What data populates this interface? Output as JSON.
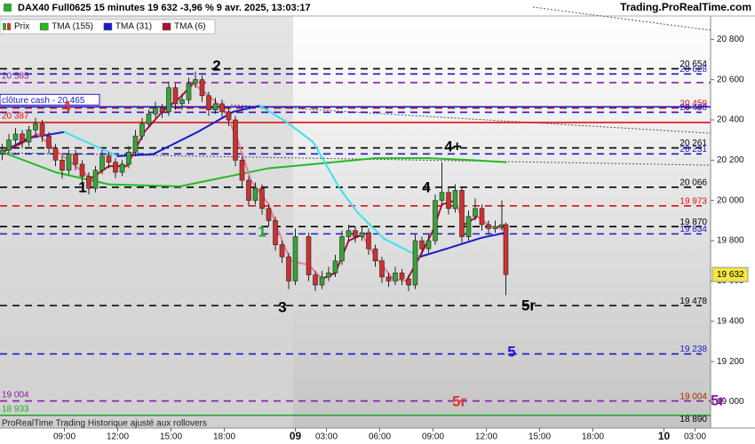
{
  "chart_data": {
    "type": "candlestick",
    "title": "DAX40 Full0625 15 minutes 19 632 -3,96 % 9 avr. 2025, 13:03:17",
    "source": "Trading.ProRealTime.com",
    "footer": "ProRealTime Trading  Historique ajusté aux rollovers",
    "xlim": [
      -0.5,
      159.5
    ],
    "ylim": [
      18870,
      20916
    ],
    "xticks": [
      {
        "value": 14,
        "label": "09:00"
      },
      {
        "value": 26,
        "label": "12:00"
      },
      {
        "value": 38,
        "label": "15:00"
      },
      {
        "value": 50,
        "label": "18:00"
      },
      {
        "value": 66,
        "label": "09"
      },
      {
        "value": 73,
        "label": "03:00"
      },
      {
        "value": 85,
        "label": "06:00"
      },
      {
        "value": 97,
        "label": "09:00"
      },
      {
        "value": 109,
        "label": "12:00"
      },
      {
        "value": 121,
        "label": "15:00"
      },
      {
        "value": 133,
        "label": "18:00"
      },
      {
        "value": 149,
        "label": "10"
      },
      {
        "value": 156,
        "label": "03:00"
      }
    ],
    "yticks": [
      {
        "value": 20800,
        "label": "20 800"
      },
      {
        "value": 20600,
        "label": "20 600"
      },
      {
        "value": 20400,
        "label": "20 400"
      },
      {
        "value": 20200,
        "label": "20 200"
      },
      {
        "value": 20000,
        "label": "20 000"
      },
      {
        "value": 19800,
        "label": "19 800"
      },
      {
        "value": 19600,
        "label": "19 600"
      },
      {
        "value": 19400,
        "label": "19 400"
      },
      {
        "value": 19200,
        "label": "19 200"
      },
      {
        "value": 19000,
        "label": "19 000"
      }
    ],
    "candles": {
      "name": "Prix",
      "up_color": "#3aa23a",
      "down_color": "#d03030",
      "x": [
        0,
        1.5,
        3,
        4.5,
        6,
        7.5,
        9,
        10.5,
        12,
        13.5,
        15,
        16.5,
        18,
        19.5,
        21,
        22.5,
        24,
        25.5,
        27,
        28.5,
        30,
        31.5,
        33,
        34.5,
        36,
        37.5,
        39,
        40.5,
        42,
        43.5,
        45,
        46.5,
        48,
        49.5,
        51,
        52.5,
        54,
        55.5,
        57,
        58.5,
        60,
        61.5,
        63,
        64.5,
        66,
        69,
        70.5,
        72,
        73.5,
        75,
        76.5,
        78,
        79.5,
        81,
        82.5,
        84,
        85.5,
        87,
        88.5,
        90,
        91.5,
        93,
        94.5,
        96,
        97.5,
        99,
        100.5,
        102,
        103.5,
        105,
        106.5,
        108,
        109.5,
        111,
        112.5,
        113.4
      ],
      "open": [
        20230,
        20250,
        20300,
        20330,
        20290,
        20350,
        20380,
        20320,
        20260,
        20200,
        20150,
        20230,
        20180,
        20120,
        20060,
        20150,
        20220,
        20190,
        20140,
        20180,
        20240,
        20320,
        20380,
        20430,
        20460,
        20440,
        20560,
        20480,
        20500,
        20580,
        20600,
        20520,
        20450,
        20480,
        20440,
        20400,
        20200,
        20100,
        20000,
        20060,
        19960,
        19900,
        19780,
        19720,
        19600,
        19820,
        19630,
        19580,
        19620,
        19640,
        19700,
        19820,
        19850,
        19820,
        19840,
        19760,
        19700,
        19620,
        19600,
        19640,
        19610,
        19580,
        19800,
        19760,
        19800,
        20000,
        20040,
        19960,
        20050,
        19820,
        19920,
        19960,
        19880,
        19860,
        19870,
        19880
      ],
      "high": [
        20280,
        20330,
        20360,
        20350,
        20370,
        20410,
        20400,
        20340,
        20280,
        20220,
        20250,
        20250,
        20200,
        20140,
        20170,
        20250,
        20240,
        20210,
        20200,
        20270,
        20350,
        20410,
        20450,
        20490,
        20480,
        20590,
        20580,
        20530,
        20610,
        20640,
        20620,
        20540,
        20510,
        20500,
        20460,
        20420,
        20220,
        20120,
        20090,
        20080,
        19980,
        19920,
        19800,
        19740,
        19860,
        19840,
        19650,
        19650,
        19670,
        19730,
        19850,
        19880,
        19870,
        19870,
        19860,
        19780,
        19720,
        19640,
        19670,
        19660,
        19630,
        19830,
        19820,
        19830,
        20030,
        20190,
        20060,
        20080,
        20070,
        19950,
        20010,
        19980,
        19900,
        19900,
        20000,
        19890
      ],
      "low": [
        20200,
        20230,
        20280,
        20260,
        20270,
        20330,
        20290,
        20230,
        20170,
        20110,
        20130,
        20150,
        20080,
        20030,
        20040,
        20130,
        20160,
        20110,
        20120,
        20160,
        20220,
        20300,
        20360,
        20410,
        20410,
        20420,
        20450,
        20450,
        20480,
        20560,
        20490,
        20420,
        20430,
        20410,
        20370,
        20170,
        20070,
        19970,
        19980,
        19930,
        19870,
        19750,
        19690,
        19560,
        19580,
        19600,
        19550,
        19560,
        19600,
        19620,
        19680,
        19800,
        19790,
        19800,
        19730,
        19670,
        19590,
        19570,
        19580,
        19580,
        19550,
        19560,
        19730,
        19740,
        19780,
        19980,
        19930,
        19940,
        19790,
        19800,
        19900,
        19850,
        19830,
        19840,
        19850,
        19530
      ],
      "close": [
        20250,
        20300,
        20330,
        20290,
        20350,
        20380,
        20320,
        20260,
        20200,
        20150,
        20230,
        20180,
        20120,
        20060,
        20150,
        20220,
        20190,
        20140,
        20180,
        20240,
        20320,
        20380,
        20430,
        20460,
        20440,
        20560,
        20480,
        20500,
        20580,
        20600,
        20520,
        20450,
        20480,
        20440,
        20400,
        20200,
        20100,
        20000,
        20060,
        19960,
        19900,
        19780,
        19720,
        19600,
        19820,
        19630,
        19580,
        19620,
        19640,
        19700,
        19820,
        19850,
        19820,
        19840,
        19760,
        19700,
        19620,
        19600,
        19640,
        19610,
        19580,
        19800,
        19760,
        19800,
        20000,
        20040,
        19960,
        20050,
        19820,
        19920,
        19960,
        19880,
        19860,
        19870,
        19880,
        19632
      ]
    },
    "last_price": {
      "value": 19632,
      "label": "19 632"
    },
    "series": [
      {
        "name": "TMA (155)",
        "color": "#22bb22",
        "falling_color": "#22bb22",
        "x": [
          0,
          12,
          24,
          40,
          60,
          70,
          84,
          96,
          106,
          113.4
        ],
        "values": [
          20240,
          20140,
          20080,
          20070,
          20160,
          20180,
          20210,
          20210,
          20200,
          20190
        ]
      },
      {
        "name": "TMA (31)",
        "color": "#1a1acc",
        "falling_color": "#40e0f0",
        "x": [
          0,
          6,
          14,
          20,
          26,
          34,
          44,
          52,
          58,
          64,
          70,
          76,
          80,
          86,
          94,
          100,
          108,
          113.4
        ],
        "values": [
          20240,
          20310,
          20340,
          20280,
          20220,
          20230,
          20340,
          20440,
          20470,
          20390,
          20290,
          20060,
          19940,
          19810,
          19720,
          19760,
          19815,
          19840
        ]
      },
      {
        "name": "TMA (6)",
        "color": "#b01030",
        "falling_color": "#f07a9a",
        "x": [
          0,
          4,
          8,
          12,
          16,
          20,
          24,
          28,
          32,
          36,
          40,
          43,
          46,
          50,
          53,
          56,
          60,
          63,
          65,
          69,
          72,
          75,
          78,
          81,
          84,
          88,
          91,
          94,
          97,
          99,
          102,
          104,
          107,
          110,
          113.4
        ],
        "values": [
          20240,
          20280,
          20330,
          20250,
          20180,
          20110,
          20170,
          20170,
          20340,
          20440,
          20510,
          20580,
          20530,
          20450,
          20300,
          20100,
          19980,
          19800,
          19700,
          19680,
          19610,
          19640,
          19800,
          19830,
          19720,
          19610,
          19600,
          19720,
          19850,
          19980,
          20000,
          19880,
          19920,
          19870,
          19860
        ]
      }
    ],
    "right_levels": [
      {
        "value": 20654,
        "label": "20 654",
        "color": "#000000",
        "line": true
      },
      {
        "value": 20628,
        "label": "20 628",
        "color": "#1a1acc",
        "line": true
      },
      {
        "value": 20459,
        "label": "20 459",
        "color": "#dd1111",
        "line": true
      },
      {
        "value": 20438,
        "label": "20 438",
        "color": "#1a1acc",
        "line": true
      },
      {
        "value": 20261,
        "label": "20 261",
        "color": "#000000",
        "line": true
      },
      {
        "value": 20231,
        "label": "20 231",
        "color": "#1a1acc",
        "line": true
      },
      {
        "value": 20066,
        "label": "20 066",
        "color": "#000000",
        "line": true
      },
      {
        "value": 19973,
        "label": "19 973",
        "color": "#dd1111",
        "line": true
      },
      {
        "value": 19870,
        "label": "19 870",
        "color": "#000000",
        "line": true
      },
      {
        "value": 19834,
        "label": "19 834",
        "color": "#1a1acc",
        "line": true
      },
      {
        "value": 19478,
        "label": "19 478",
        "color": "#000000",
        "line": true
      },
      {
        "value": 19238,
        "label": "19 238",
        "color": "#1a1acc",
        "line": true
      },
      {
        "value": 19004,
        "label": "19 004",
        "color": "#aa2200",
        "line": false
      },
      {
        "value": 18890,
        "label": "18 890",
        "color": "#000000",
        "line": false
      }
    ],
    "left_levels": [
      {
        "value": 20585,
        "label": "20 585",
        "color": "#8a1aa8",
        "dashed": true
      },
      {
        "value": 20465,
        "label": "clôture cash - 20 465",
        "color": "#1a1acc",
        "dashed": false
      },
      {
        "value": 20387,
        "label": "20 387",
        "color": "#dd1111",
        "dashed": false
      },
      {
        "value": 19004,
        "label": "19 004",
        "color": "#8a1aa8",
        "dashed": true
      },
      {
        "value": 18933,
        "label": "18 933",
        "color": "#22aa22",
        "dashed": false
      }
    ],
    "annotations": [
      {
        "text": "2",
        "color": "#000000"
      },
      {
        "text": "1",
        "color": "#000000"
      },
      {
        "text": "1",
        "color": "#22aa22"
      },
      {
        "text": "3",
        "color": "#000000"
      },
      {
        "text": "4",
        "color": "#dd3333"
      },
      {
        "text": "4",
        "color": "#000000"
      },
      {
        "text": "4+",
        "color": "#000000"
      },
      {
        "text": "5r",
        "color": "#000000"
      },
      {
        "text": "5",
        "color": "#1a1acc"
      },
      {
        "text": "5r",
        "color": "#dd3333"
      },
      {
        "text": "5r",
        "color": "#8a1aa8"
      }
    ]
  }
}
